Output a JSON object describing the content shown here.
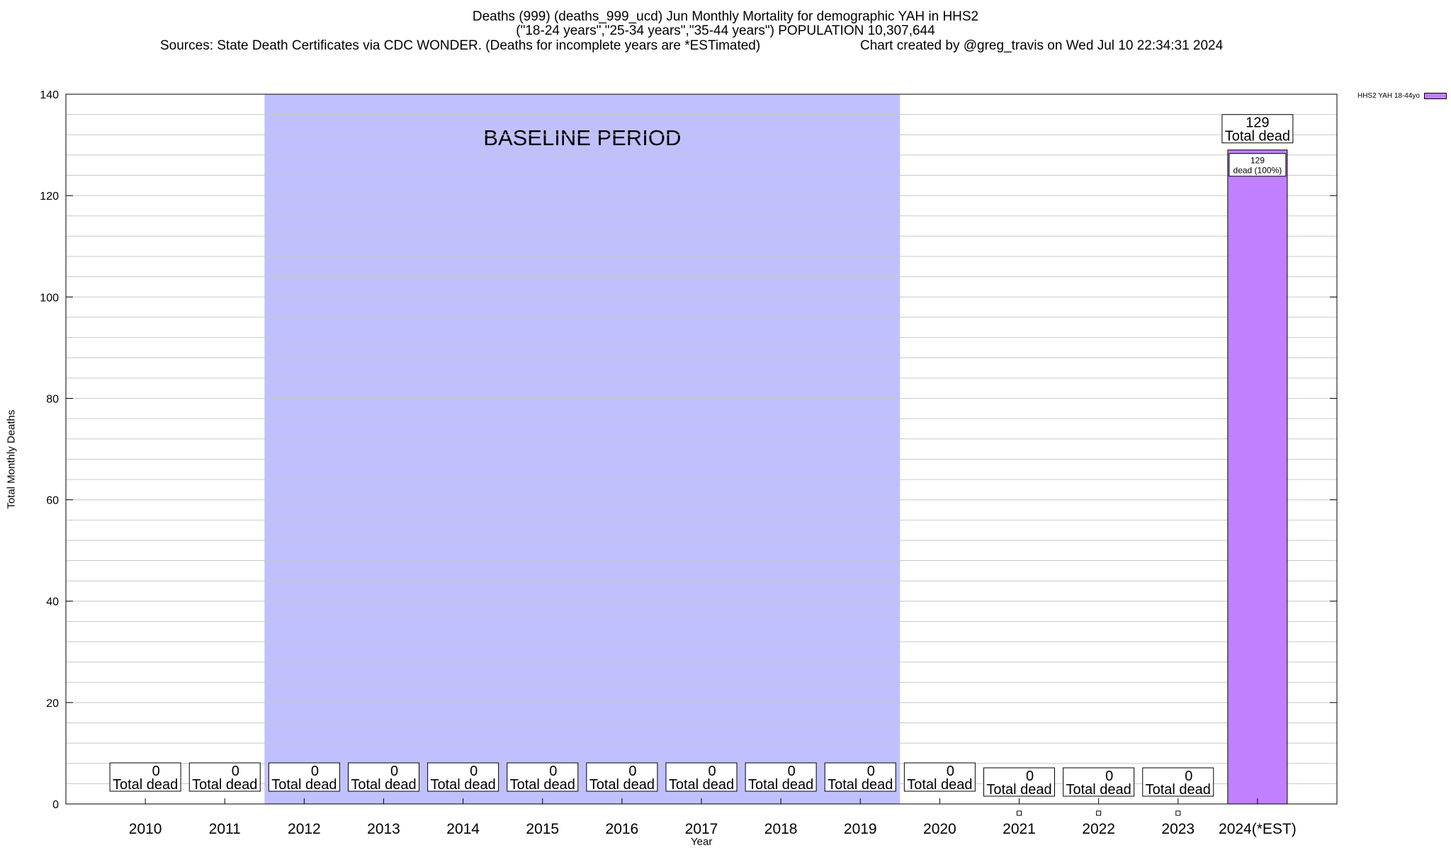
{
  "title": {
    "line1": "Deaths (999) (deaths_999_ucd) Jun Monthly Mortality for demographic YAH in HHS2",
    "line2": "(\"18-24 years\",\"25-34 years\",\"35-44 years\") POPULATION 10,307,644",
    "sources": "Sources: State Death Certificates via CDC WONDER. (Deaths for incomplete years are *ESTimated)",
    "credit": "Chart created by @greg_travis on Wed Jul 10 22:34:31 2024"
  },
  "colors": {
    "baseline_band": "#c0c0ff",
    "bar": "#c080ff",
    "grid": "#c8c8c8"
  },
  "chart_data": {
    "type": "bar",
    "xlabel": "Year",
    "ylabel": "Total Monthly Deaths",
    "ylim": [
      0,
      140
    ],
    "yticks": [
      0,
      20,
      40,
      60,
      80,
      100,
      120,
      140
    ],
    "grid": true,
    "legend": {
      "placement": "top-right",
      "entries": [
        "HHS2 YAH 18-44yo"
      ]
    },
    "baseline": {
      "label": "BASELINE PERIOD",
      "from": "2012",
      "to": "2019"
    },
    "categories": [
      "2010",
      "2011",
      "2012",
      "2013",
      "2014",
      "2015",
      "2016",
      "2017",
      "2018",
      "2019",
      "2020",
      "2021",
      "2022",
      "2023",
      "2024(*EST)"
    ],
    "series": [
      {
        "name": "HHS2 YAH 18-44yo",
        "values": [
          0,
          0,
          0,
          0,
          0,
          0,
          0,
          0,
          0,
          0,
          0,
          0,
          0,
          0,
          129
        ]
      }
    ],
    "total_label_suffix": "Total dead",
    "inner_label": {
      "value": "129",
      "text": "dead (100%)"
    }
  }
}
